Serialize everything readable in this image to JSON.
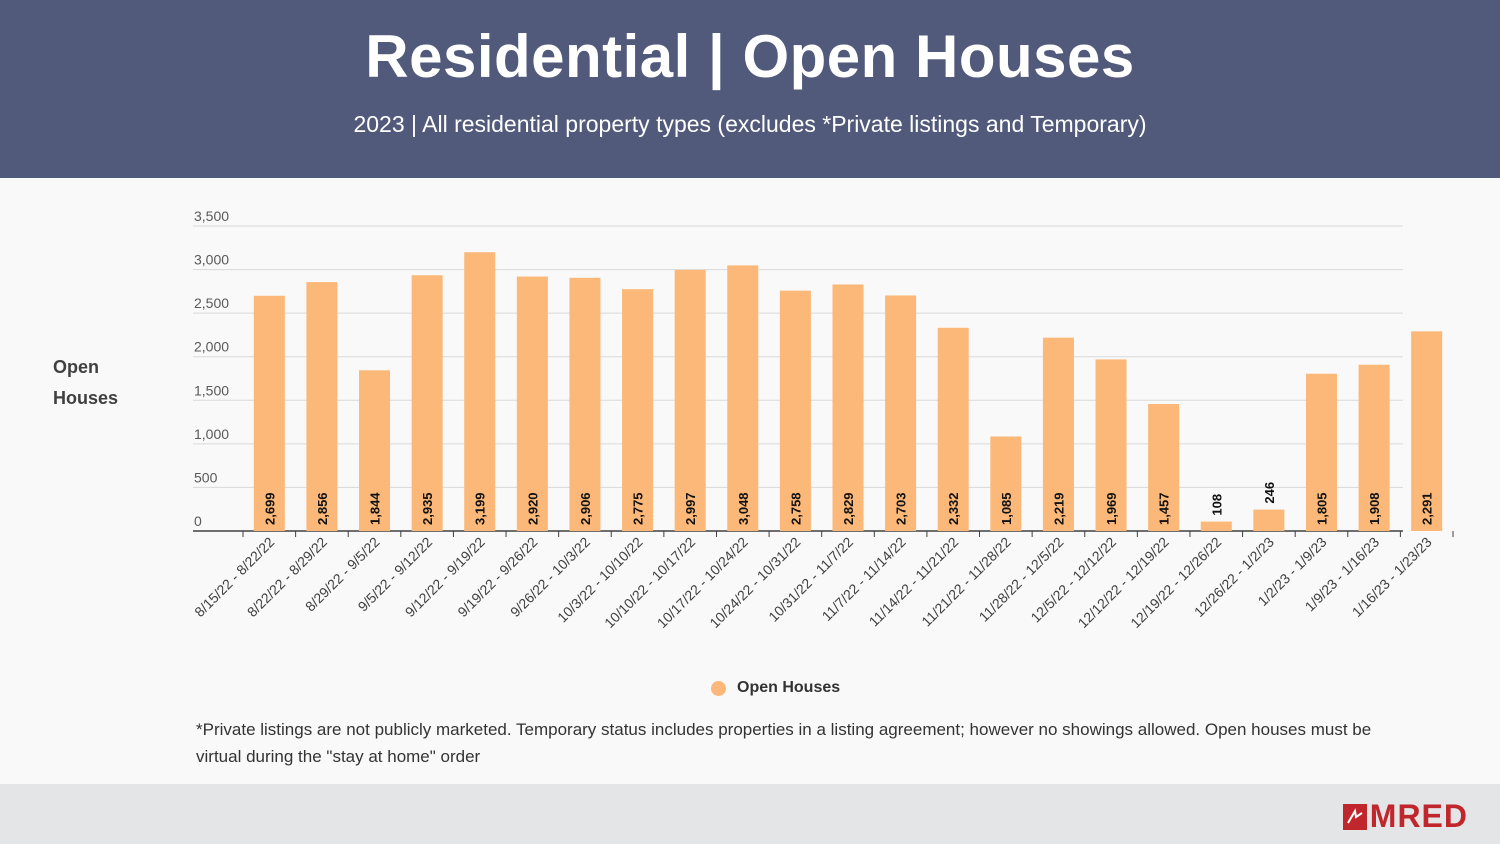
{
  "header": {
    "title": "Residential | Open Houses",
    "subtitle": "2023 | All residential property types (excludes *Private listings and Temporary)"
  },
  "y_axis_label": [
    "Open",
    "Houses"
  ],
  "legend": {
    "label": "Open Houses"
  },
  "footnote": "*Private listings are not publicly marketed. Temporary status includes properties in a listing agreement; however no showings allowed. Open houses must be virtual during the \"stay at home\" order",
  "logo": {
    "text": "MRED"
  },
  "colors": {
    "bar": "#fbb878",
    "header": "#525a7b",
    "logo": "#c0272d"
  },
  "chart_data": {
    "type": "bar",
    "title": "Residential | Open Houses",
    "ylabel": "Open Houses",
    "xlabel": "",
    "ylim": [
      0,
      3500
    ],
    "yticks": [
      0,
      500,
      1000,
      1500,
      2000,
      2500,
      3000,
      3500
    ],
    "ytick_labels": [
      "0",
      "500",
      "1,000",
      "1,500",
      "2,000",
      "2,500",
      "3,000",
      "3,500"
    ],
    "grid": true,
    "categories": [
      "8/15/22 - 8/22/22",
      "8/22/22 - 8/29/22",
      "8/29/22 - 9/5/22",
      "9/5/22 - 9/12/22",
      "9/12/22 - 9/19/22",
      "9/19/22 - 9/26/22",
      "9/26/22 - 10/3/22",
      "10/3/22 - 10/10/22",
      "10/10/22 - 10/17/22",
      "10/17/22 - 10/24/22",
      "10/24/22 - 10/31/22",
      "10/31/22 - 11/7/22",
      "11/7/22 - 11/14/22",
      "11/14/22 - 11/21/22",
      "11/21/22 - 11/28/22",
      "11/28/22 - 12/5/22",
      "12/5/22 - 12/12/22",
      "12/12/22 - 12/19/22",
      "12/19/22 - 12/26/22",
      "12/26/22 - 1/2/23",
      "1/2/23 - 1/9/23",
      "1/9/23 - 1/16/23",
      "1/16/23 - 1/23/23"
    ],
    "series": [
      {
        "name": "Open Houses",
        "values": [
          2699,
          2856,
          1844,
          2935,
          3199,
          2920,
          2906,
          2775,
          2997,
          3048,
          2758,
          2829,
          2703,
          2332,
          1085,
          2219,
          1969,
          1457,
          108,
          246,
          1805,
          1908,
          2291
        ],
        "labels": [
          "2,699",
          "2,856",
          "1,844",
          "2,935",
          "3,199",
          "2,920",
          "2,906",
          "2,775",
          "2,997",
          "3,048",
          "2,758",
          "2,829",
          "2,703",
          "2,332",
          "1,085",
          "2,219",
          "1,969",
          "1,457",
          "108",
          "246",
          "1,805",
          "1,908",
          "2,291"
        ]
      }
    ]
  }
}
